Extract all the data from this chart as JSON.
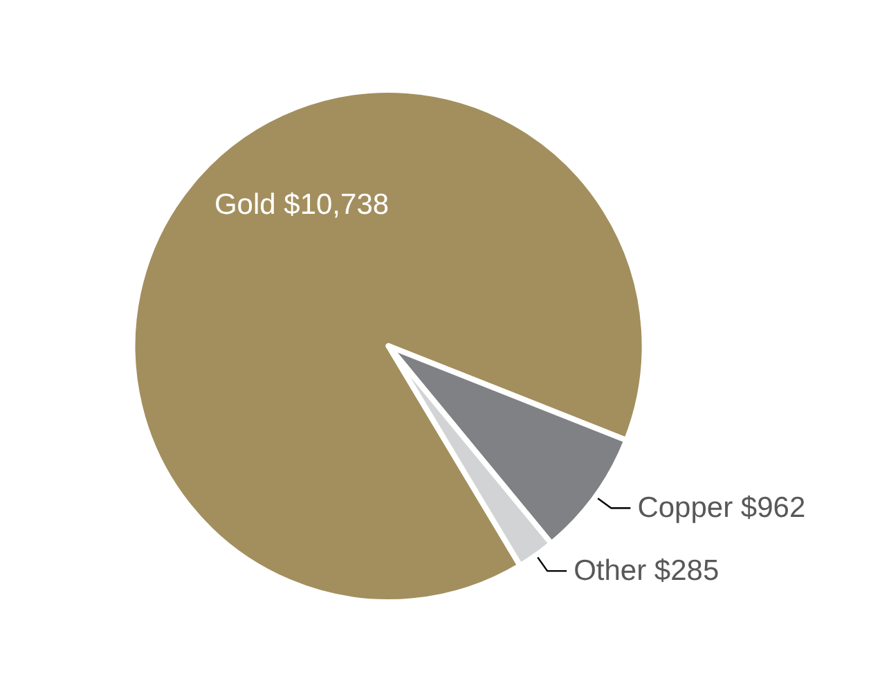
{
  "chart_data": {
    "type": "pie",
    "categories": [
      "Gold",
      "Copper",
      "Other"
    ],
    "values": [
      10738,
      962,
      285
    ],
    "value_labels": [
      "$10,738",
      "$962",
      "$285"
    ],
    "colors": [
      "#a38f5e",
      "#808184",
      "#d1d3d4"
    ],
    "legend": false
  }
}
